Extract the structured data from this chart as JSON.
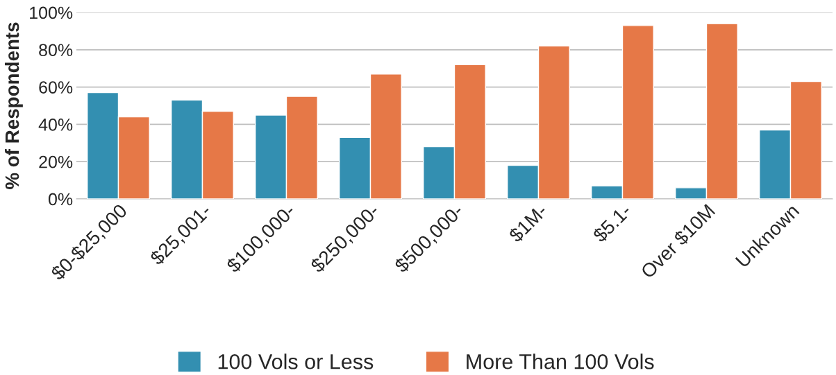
{
  "chart_data": {
    "type": "bar",
    "ylabel": "% of Respondents",
    "categories": [
      "$0-$25,000",
      "$25,001-",
      "$100,000-",
      "$250,000-",
      "$500,000-",
      "$1M-",
      "$5.1-",
      "Over $10M",
      "Unknown"
    ],
    "series": [
      {
        "name": "100 Vols or Less",
        "color": "#338fb1",
        "values": [
          57,
          53,
          45,
          33,
          28,
          18,
          7,
          6,
          37
        ]
      },
      {
        "name": "More Than 100 Vols",
        "color": "#e67847",
        "values": [
          44,
          47,
          55,
          67,
          72,
          82,
          93,
          94,
          63
        ]
      }
    ],
    "ylim": [
      0,
      100
    ],
    "yticks": [
      {
        "value": 0,
        "label": "0%"
      },
      {
        "value": 20,
        "label": "20%"
      },
      {
        "value": 40,
        "label": "40%"
      },
      {
        "value": 60,
        "label": "60%"
      },
      {
        "value": 80,
        "label": "80%"
      },
      {
        "value": 100,
        "label": "100%"
      }
    ],
    "grid": "y",
    "legend": "bottom"
  }
}
